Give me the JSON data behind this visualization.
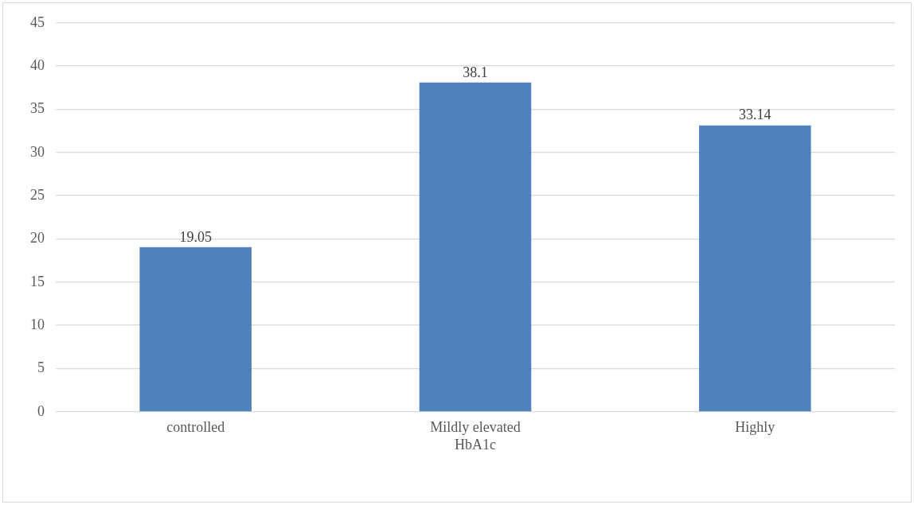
{
  "chart_data": {
    "type": "bar",
    "categories": [
      "controlled",
      "Mildly elevated HbA1c",
      "Highly"
    ],
    "values": [
      19.05,
      38.1,
      33.14
    ],
    "color": "#4f81bd",
    "ylim": [
      0,
      45
    ],
    "yticks": [
      0,
      5,
      10,
      15,
      20,
      25,
      30,
      35,
      40,
      45
    ],
    "grid": "y",
    "data_labels": true
  }
}
